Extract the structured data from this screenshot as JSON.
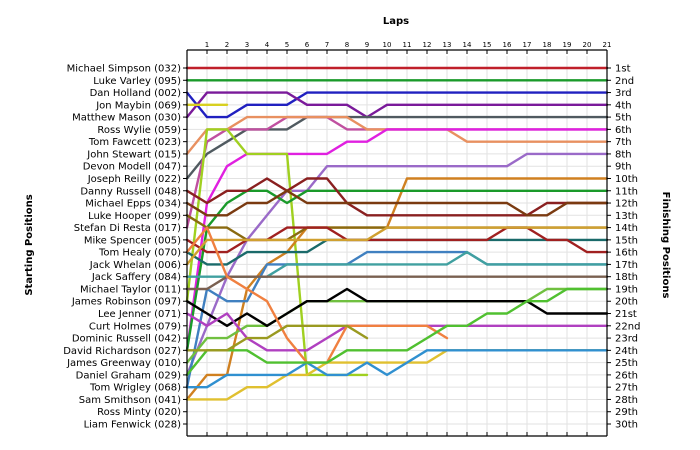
{
  "chart_data": {
    "type": "line",
    "title": "",
    "xlabel": "Laps",
    "ylabel_left": "Starting Positions",
    "ylabel_right": "Finishing Positions",
    "laps": [
      1,
      2,
      3,
      4,
      5,
      6,
      7,
      8,
      9,
      10,
      11,
      12,
      13,
      14,
      15,
      16,
      17,
      18,
      19,
      20,
      21
    ],
    "ylim": [
      1,
      30
    ],
    "grid": true,
    "drivers": [
      "Michael Simpson (032)",
      "Luke Varley (095)",
      "Dan Holland (002)",
      "Jon Maybin (069)",
      "Matthew Mason (030)",
      "Ross Wylie (059)",
      "Tom Fawcett (023)",
      "John Stewart (015)",
      "Devon Modell (047)",
      "Joseph Reilly (022)",
      "Danny Russell (048)",
      "Michael Epps (034)",
      "Luke Hooper (099)",
      "Stefan Di Resta (017)",
      "Mike Spencer (005)",
      "Tom Healy (070)",
      "Jack Whelan (006)",
      "Jack Saffery (084)",
      "Michael Taylor (011)",
      "James Robinson (097)",
      "Lee Jenner (071)",
      "Curt Holmes (079)",
      "Dominic Russell (042)",
      "David Richardson (027)",
      "James Greenway (010)",
      "Daniel Graham (029)",
      "Tom Wrigley (068)",
      "Sam Smithson (041)",
      "Ross Minty (020)",
      "Liam Fenwick (028)"
    ],
    "finishing_positions": [
      "1st",
      "2nd",
      "3rd",
      "4th",
      "5th",
      "6th",
      "7th",
      "8th",
      "9th",
      "10th",
      "11th",
      "12th",
      "13th",
      "14th",
      "15th",
      "16th",
      "17th",
      "18th",
      "19th",
      "20th",
      "21st",
      "22nd",
      "23rd",
      "24th",
      "25th",
      "26th",
      "27th",
      "28th",
      "29th",
      "30th"
    ],
    "series": [
      {
        "color": "#c0202a",
        "positions": [
          1,
          1,
          1,
          1,
          1,
          1,
          1,
          1,
          1,
          1,
          1,
          1,
          1,
          1,
          1,
          1,
          1,
          1,
          1,
          1,
          1,
          1
        ]
      },
      {
        "color": "#1a9a2a",
        "positions": [
          2,
          2,
          2,
          2,
          2,
          2,
          2,
          2,
          2,
          2,
          2,
          2,
          2,
          2,
          2,
          2,
          2,
          2,
          2,
          2,
          2,
          2
        ]
      },
      {
        "color": "#2020c0",
        "positions": [
          3,
          5,
          5,
          4,
          4,
          4,
          3,
          3,
          3,
          3,
          3,
          3,
          3,
          3,
          3,
          3,
          3,
          3,
          3,
          3,
          3,
          3
        ]
      },
      {
        "color": "#7a1a9a",
        "positions": [
          5,
          3,
          3,
          3,
          3,
          3,
          4,
          4,
          4,
          5,
          4,
          4,
          4,
          4,
          4,
          4,
          4,
          4,
          4,
          4,
          4,
          4
        ]
      },
      {
        "color": "#d8d020",
        "positions": [
          4,
          4,
          4
        ]
      },
      {
        "color": "#505a60",
        "positions": [
          10,
          8,
          7,
          6,
          6,
          6,
          5,
          5,
          5,
          5,
          5,
          5,
          5,
          5,
          5,
          5,
          5,
          5,
          5,
          5,
          5,
          5
        ]
      },
      {
        "color": "#c050a0",
        "positions": [
          14,
          7,
          6,
          6,
          6,
          5,
          5,
          5,
          6,
          6,
          6,
          6,
          6,
          6,
          6,
          6,
          6,
          6,
          6,
          6,
          6,
          6
        ]
      },
      {
        "color": "#e89060",
        "positions": [
          8,
          6,
          6,
          5,
          5,
          5,
          5,
          5,
          5,
          6,
          6,
          6,
          6,
          6,
          7,
          7,
          7,
          7,
          7,
          7,
          7,
          7
        ]
      },
      {
        "color": "#e020e0",
        "positions": [
          24,
          12,
          9,
          8,
          8,
          8,
          8,
          8,
          7,
          7,
          6,
          6,
          6,
          6,
          6,
          6,
          6,
          6,
          6,
          6,
          6,
          6
        ]
      },
      {
        "color": "#9a6ac8",
        "positions": [
          26,
          22,
          18,
          15,
          13,
          11,
          11,
          9,
          9,
          9,
          9,
          9,
          9,
          9,
          9,
          9,
          9,
          8,
          8,
          8,
          8,
          8
        ]
      },
      {
        "color": "#a0d020",
        "positions": [
          20,
          6,
          6,
          8,
          8,
          8,
          26,
          26,
          26,
          26
        ]
      },
      {
        "color": "#d08020",
        "positions": [
          28,
          26,
          26,
          19,
          17,
          16,
          14,
          14,
          14,
          14,
          14,
          10,
          10,
          10,
          10,
          10,
          10,
          10,
          10,
          10,
          10,
          10
        ]
      },
      {
        "color": "#1a9a2a",
        "positions": [
          24,
          14,
          12,
          11,
          11,
          12,
          11,
          11,
          11,
          11,
          11,
          11,
          11,
          11,
          11,
          11,
          11,
          11,
          11,
          11,
          11,
          11
        ]
      },
      {
        "color": "#8a2020",
        "positions": [
          11,
          12,
          11,
          11,
          10,
          11,
          10,
          10,
          12,
          13,
          13,
          13,
          13,
          13,
          13,
          13,
          13,
          13,
          12,
          12,
          12,
          12
        ]
      },
      {
        "color": "#7a3a10",
        "positions": [
          12,
          13,
          13,
          12,
          12,
          11,
          12,
          12,
          12,
          12,
          12,
          12,
          12,
          12,
          12,
          12,
          12,
          13,
          13,
          12,
          12,
          12
        ]
      },
      {
        "color": "#8a6a10",
        "positions": [
          13,
          14,
          14,
          15,
          15,
          15,
          14,
          14,
          14,
          14,
          14,
          14,
          14,
          14,
          14,
          14,
          14,
          14,
          14,
          14,
          14,
          14
        ]
      },
      {
        "color": "#1a6a6a",
        "positions": [
          16,
          17,
          17,
          16,
          16,
          16,
          16,
          15,
          15,
          15,
          15,
          15,
          15,
          15,
          15,
          15,
          15,
          15,
          15,
          15,
          15,
          15
        ]
      },
      {
        "color": "#a02020",
        "positions": [
          15,
          16,
          16,
          15,
          15,
          14,
          14,
          14,
          15,
          15,
          15,
          15,
          15,
          15,
          15,
          15,
          14,
          14,
          15,
          15,
          16,
          16
        ]
      },
      {
        "color": "#d0a030",
        "positions": [
          17,
          15,
          15,
          15,
          15,
          15,
          15,
          15,
          15,
          15,
          14,
          14,
          14,
          14,
          14,
          14,
          14,
          14,
          14,
          14,
          14,
          14
        ]
      },
      {
        "color": "#4080c0",
        "positions": [
          27,
          19,
          20,
          20,
          17,
          17,
          17,
          17,
          17,
          16,
          16,
          16,
          16,
          16,
          16,
          17,
          17,
          17,
          17,
          17,
          17,
          17
        ]
      },
      {
        "color": "#40a0a0",
        "positions": [
          18,
          18,
          18,
          18,
          18,
          17,
          17,
          17,
          17,
          17,
          17,
          17,
          17,
          17,
          16,
          17,
          17,
          17,
          17,
          17,
          17,
          17
        ]
      },
      {
        "color": "#7a6050",
        "positions": [
          19,
          19,
          18,
          18,
          18,
          18,
          18,
          18,
          18,
          18,
          18,
          18,
          18,
          18,
          18,
          18,
          18,
          18,
          18,
          18,
          18,
          18
        ]
      },
      {
        "color": "#70c040",
        "positions": [
          25,
          23,
          23,
          22,
          22,
          21,
          20,
          20,
          20,
          20,
          20,
          20,
          20,
          20,
          20,
          20,
          20,
          20,
          19,
          19,
          19,
          19
        ]
      },
      {
        "color": "#000000",
        "positions": [
          20,
          21,
          22,
          21,
          22,
          21,
          20,
          20,
          19,
          20,
          20,
          20,
          20,
          20,
          20,
          20,
          20,
          20,
          21,
          21,
          21,
          21
        ]
      },
      {
        "color": "#b040c0",
        "positions": [
          21,
          22,
          21,
          23,
          24,
          24,
          24,
          23,
          22,
          22,
          22,
          22,
          22,
          22,
          22,
          22,
          22,
          22,
          22,
          22,
          22,
          22
        ]
      },
      {
        "color": "#f08040",
        "positions": [
          16,
          14,
          18,
          19,
          20,
          23,
          25,
          25,
          22,
          22,
          22,
          22,
          22,
          23
        ]
      },
      {
        "color": "#e0c030",
        "positions": [
          28,
          28,
          28,
          27,
          27,
          26,
          26,
          25,
          25,
          25,
          25,
          25,
          25,
          24,
          24,
          24,
          24,
          24,
          24,
          24,
          24,
          24
        ]
      },
      {
        "color": "#3090d0",
        "positions": [
          27,
          27,
          26,
          26,
          26,
          26,
          25,
          26,
          26,
          25,
          26,
          25,
          24,
          24,
          24,
          24,
          24,
          24,
          24,
          24,
          24,
          24
        ]
      },
      {
        "color": "#50c030",
        "positions": [
          26,
          24,
          24,
          24,
          25,
          25,
          25,
          25,
          24,
          24,
          24,
          24,
          23,
          22,
          22,
          21,
          21,
          20,
          20,
          19,
          19,
          19
        ]
      },
      {
        "color": "#9a9a20",
        "positions": [
          24,
          24,
          24,
          23,
          23,
          22,
          22,
          22,
          22,
          23
        ]
      }
    ]
  }
}
